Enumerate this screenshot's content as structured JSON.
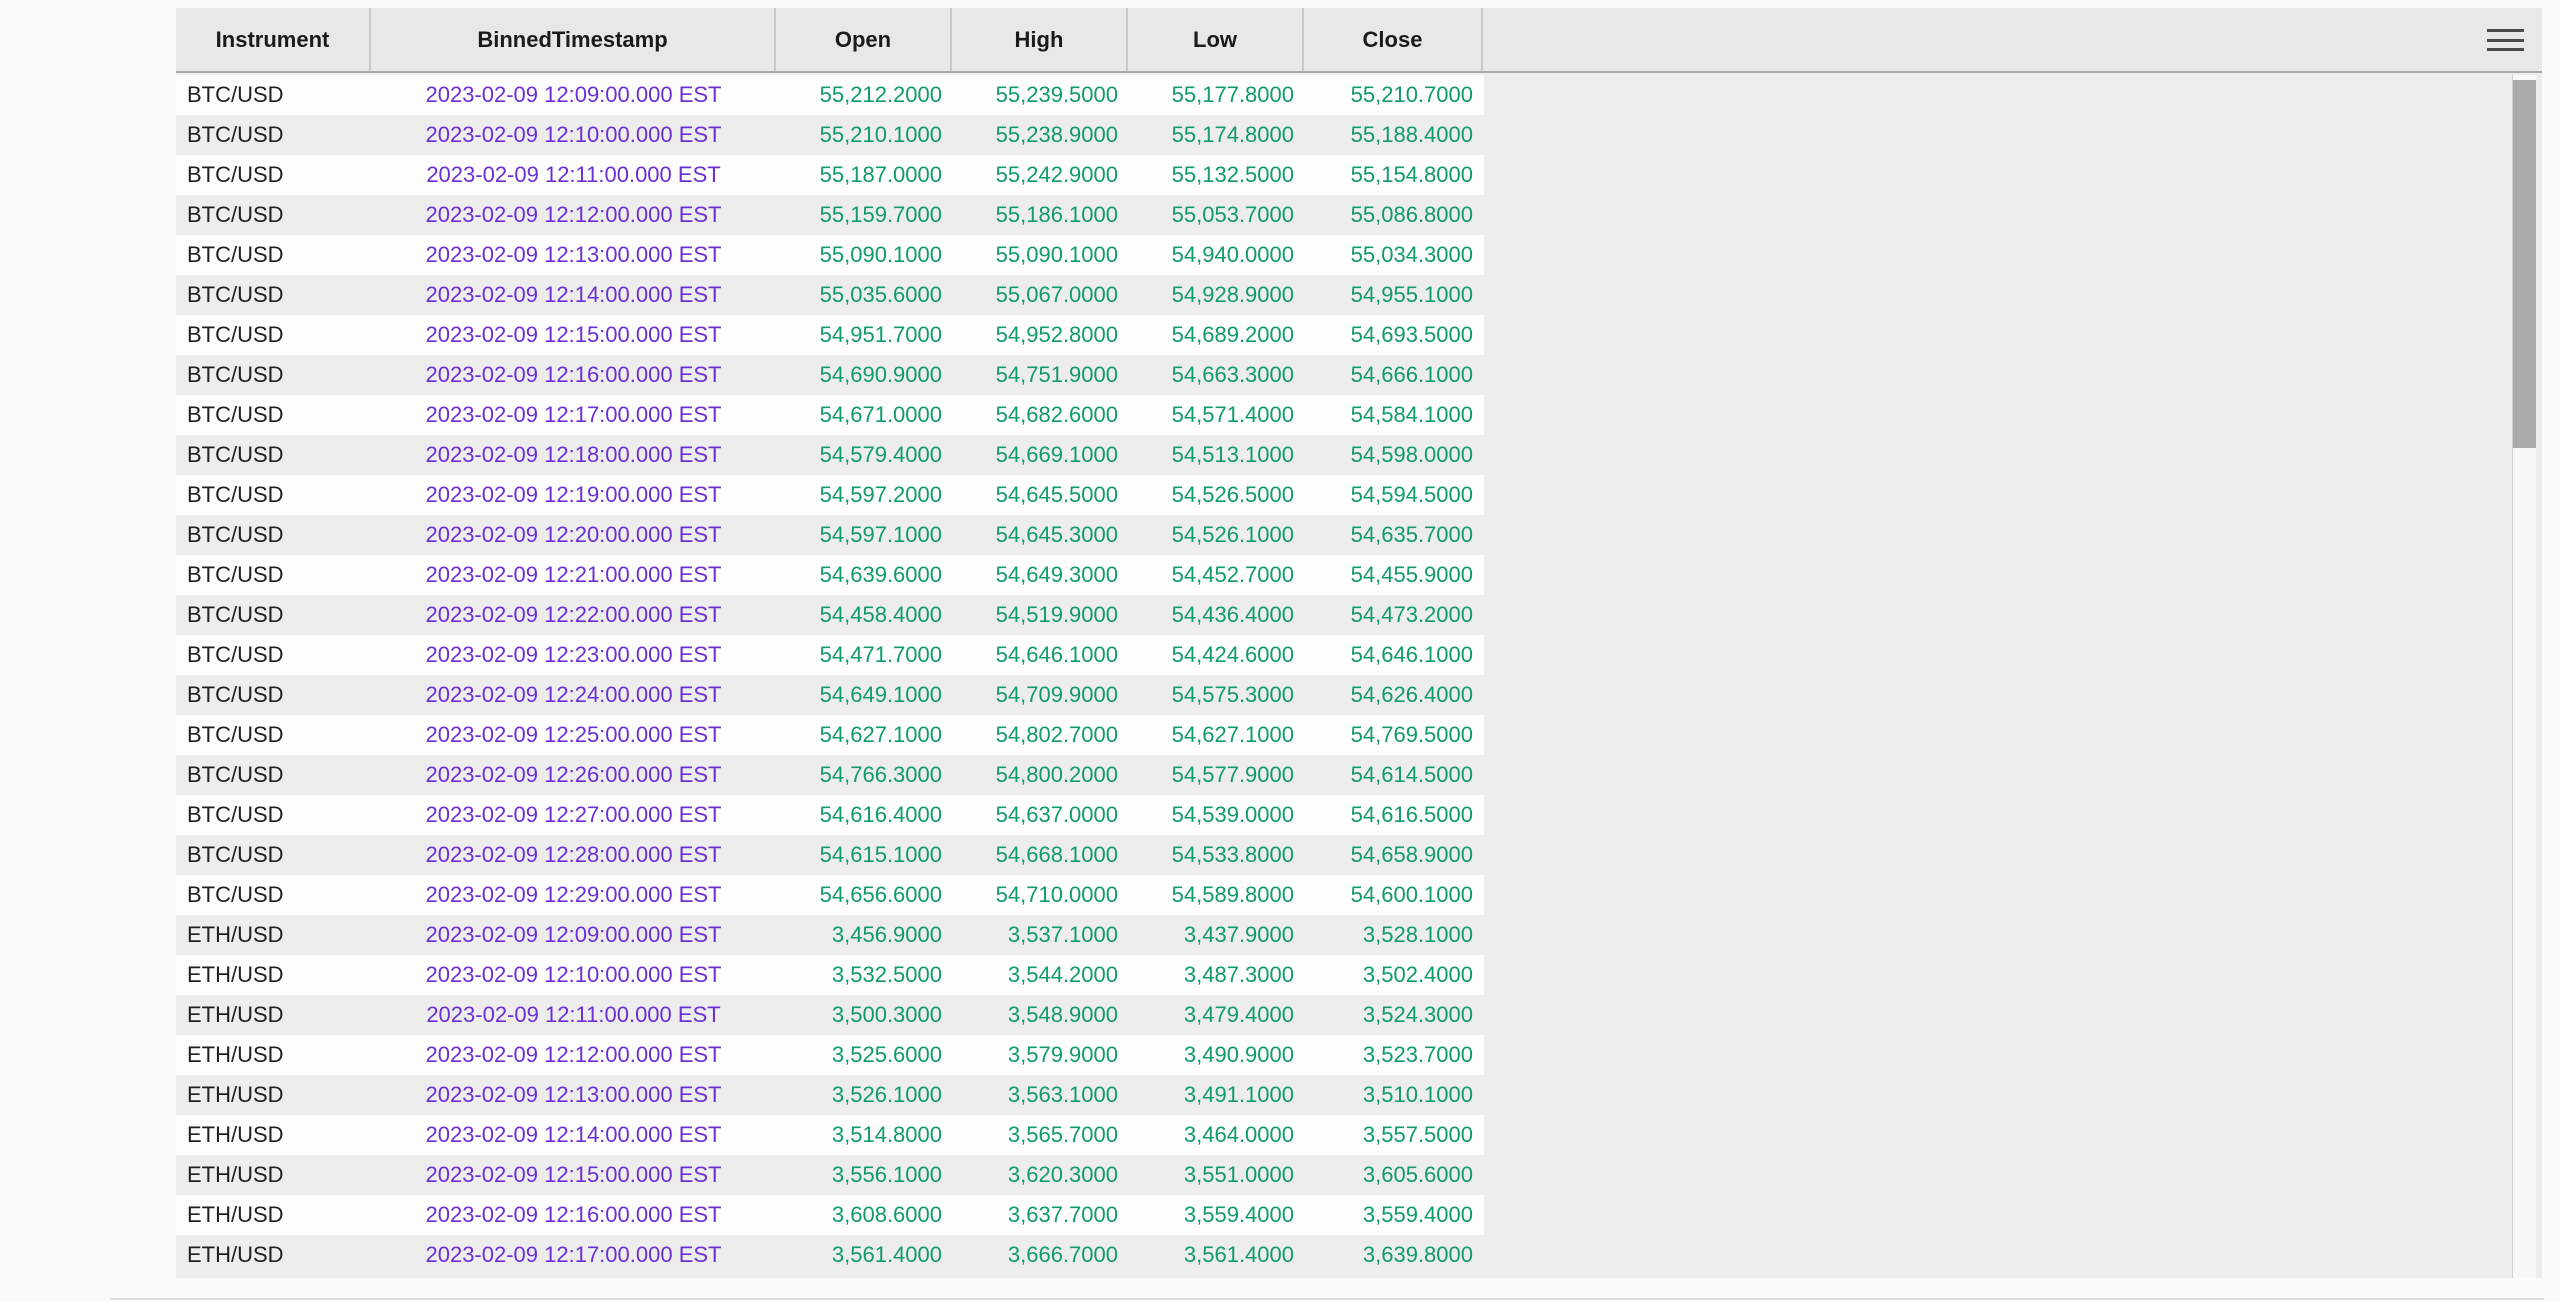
{
  "grid": {
    "columns": [
      "Instrument",
      "BinnedTimestamp",
      "Open",
      "High",
      "Low",
      "Close"
    ],
    "rows": [
      [
        "BTC/USD",
        "2023-02-09 12:09:00.000 EST",
        "55,212.2000",
        "55,239.5000",
        "55,177.8000",
        "55,210.7000"
      ],
      [
        "BTC/USD",
        "2023-02-09 12:10:00.000 EST",
        "55,210.1000",
        "55,238.9000",
        "55,174.8000",
        "55,188.4000"
      ],
      [
        "BTC/USD",
        "2023-02-09 12:11:00.000 EST",
        "55,187.0000",
        "55,242.9000",
        "55,132.5000",
        "55,154.8000"
      ],
      [
        "BTC/USD",
        "2023-02-09 12:12:00.000 EST",
        "55,159.7000",
        "55,186.1000",
        "55,053.7000",
        "55,086.8000"
      ],
      [
        "BTC/USD",
        "2023-02-09 12:13:00.000 EST",
        "55,090.1000",
        "55,090.1000",
        "54,940.0000",
        "55,034.3000"
      ],
      [
        "BTC/USD",
        "2023-02-09 12:14:00.000 EST",
        "55,035.6000",
        "55,067.0000",
        "54,928.9000",
        "54,955.1000"
      ],
      [
        "BTC/USD",
        "2023-02-09 12:15:00.000 EST",
        "54,951.7000",
        "54,952.8000",
        "54,689.2000",
        "54,693.5000"
      ],
      [
        "BTC/USD",
        "2023-02-09 12:16:00.000 EST",
        "54,690.9000",
        "54,751.9000",
        "54,663.3000",
        "54,666.1000"
      ],
      [
        "BTC/USD",
        "2023-02-09 12:17:00.000 EST",
        "54,671.0000",
        "54,682.6000",
        "54,571.4000",
        "54,584.1000"
      ],
      [
        "BTC/USD",
        "2023-02-09 12:18:00.000 EST",
        "54,579.4000",
        "54,669.1000",
        "54,513.1000",
        "54,598.0000"
      ],
      [
        "BTC/USD",
        "2023-02-09 12:19:00.000 EST",
        "54,597.2000",
        "54,645.5000",
        "54,526.5000",
        "54,594.5000"
      ],
      [
        "BTC/USD",
        "2023-02-09 12:20:00.000 EST",
        "54,597.1000",
        "54,645.3000",
        "54,526.1000",
        "54,635.7000"
      ],
      [
        "BTC/USD",
        "2023-02-09 12:21:00.000 EST",
        "54,639.6000",
        "54,649.3000",
        "54,452.7000",
        "54,455.9000"
      ],
      [
        "BTC/USD",
        "2023-02-09 12:22:00.000 EST",
        "54,458.4000",
        "54,519.9000",
        "54,436.4000",
        "54,473.2000"
      ],
      [
        "BTC/USD",
        "2023-02-09 12:23:00.000 EST",
        "54,471.7000",
        "54,646.1000",
        "54,424.6000",
        "54,646.1000"
      ],
      [
        "BTC/USD",
        "2023-02-09 12:24:00.000 EST",
        "54,649.1000",
        "54,709.9000",
        "54,575.3000",
        "54,626.4000"
      ],
      [
        "BTC/USD",
        "2023-02-09 12:25:00.000 EST",
        "54,627.1000",
        "54,802.7000",
        "54,627.1000",
        "54,769.5000"
      ],
      [
        "BTC/USD",
        "2023-02-09 12:26:00.000 EST",
        "54,766.3000",
        "54,800.2000",
        "54,577.9000",
        "54,614.5000"
      ],
      [
        "BTC/USD",
        "2023-02-09 12:27:00.000 EST",
        "54,616.4000",
        "54,637.0000",
        "54,539.0000",
        "54,616.5000"
      ],
      [
        "BTC/USD",
        "2023-02-09 12:28:00.000 EST",
        "54,615.1000",
        "54,668.1000",
        "54,533.8000",
        "54,658.9000"
      ],
      [
        "BTC/USD",
        "2023-02-09 12:29:00.000 EST",
        "54,656.6000",
        "54,710.0000",
        "54,589.8000",
        "54,600.1000"
      ],
      [
        "ETH/USD",
        "2023-02-09 12:09:00.000 EST",
        "3,456.9000",
        "3,537.1000",
        "3,437.9000",
        "3,528.1000"
      ],
      [
        "ETH/USD",
        "2023-02-09 12:10:00.000 EST",
        "3,532.5000",
        "3,544.2000",
        "3,487.3000",
        "3,502.4000"
      ],
      [
        "ETH/USD",
        "2023-02-09 12:11:00.000 EST",
        "3,500.3000",
        "3,548.9000",
        "3,479.4000",
        "3,524.3000"
      ],
      [
        "ETH/USD",
        "2023-02-09 12:12:00.000 EST",
        "3,525.6000",
        "3,579.9000",
        "3,490.9000",
        "3,523.7000"
      ],
      [
        "ETH/USD",
        "2023-02-09 12:13:00.000 EST",
        "3,526.1000",
        "3,563.1000",
        "3,491.1000",
        "3,510.1000"
      ],
      [
        "ETH/USD",
        "2023-02-09 12:14:00.000 EST",
        "3,514.8000",
        "3,565.7000",
        "3,464.0000",
        "3,557.5000"
      ],
      [
        "ETH/USD",
        "2023-02-09 12:15:00.000 EST",
        "3,556.1000",
        "3,620.3000",
        "3,551.0000",
        "3,605.6000"
      ],
      [
        "ETH/USD",
        "2023-02-09 12:16:00.000 EST",
        "3,608.6000",
        "3,637.7000",
        "3,559.4000",
        "3,559.4000"
      ],
      [
        "ETH/USD",
        "2023-02-09 12:17:00.000 EST",
        "3,561.4000",
        "3,666.7000",
        "3,561.4000",
        "3,639.8000"
      ]
    ]
  },
  "icons": {
    "menu": "hamburger-icon"
  },
  "colors": {
    "header_bg": "#e9e8e9",
    "header_border": "#a9a9a9",
    "separator": "#c9c8c9",
    "row_bg": "#fdfdfe",
    "row_alt_bg": "#ededee",
    "timestamp_text": "#6b2fd6",
    "number_text": "#109c66",
    "scrollbar_thumb": "#ababab"
  }
}
